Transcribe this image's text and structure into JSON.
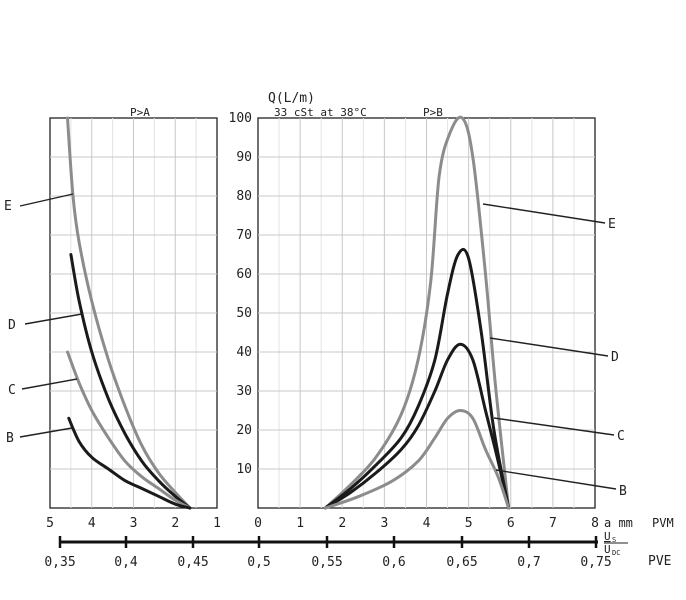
{
  "chart_data": {
    "type": "line",
    "y_label": "Q(L/m)",
    "condition": "33 cSt at 38°C",
    "ylim": [
      0,
      100
    ],
    "y_ticks": [
      10,
      20,
      30,
      40,
      50,
      60,
      70,
      80,
      90,
      100
    ],
    "grid": true,
    "panels": [
      {
        "id": "left",
        "title": "P>A",
        "x_ticks": [
          5,
          4,
          3,
          2,
          1
        ],
        "xlim": [
          5,
          1
        ],
        "series": [
          {
            "name": "E",
            "color": "#8c8c8c",
            "x": [
              4.58,
              4.45,
              4.3,
              4.0,
              3.6,
              3.2,
              2.8,
              2.4,
              2.0,
              1.65
            ],
            "y": [
              100,
              80,
              68,
              53,
              38,
              26,
              16,
              9,
              4,
              0
            ]
          },
          {
            "name": "D",
            "color": "#1a1a1a",
            "x": [
              4.5,
              4.3,
              4.0,
              3.6,
              3.2,
              2.8,
              2.4,
              2.0,
              1.65
            ],
            "y": [
              65,
              53,
              40,
              28,
              19,
              12,
              7,
              3,
              0
            ]
          },
          {
            "name": "C",
            "color": "#8c8c8c",
            "x": [
              4.58,
              4.3,
              4.0,
              3.6,
              3.2,
              2.8,
              2.4,
              2.0,
              1.65
            ],
            "y": [
              40,
              32,
              25,
              18,
              12,
              8,
              5,
              2,
              0
            ]
          },
          {
            "name": "B",
            "color": "#1a1a1a",
            "x": [
              4.55,
              4.3,
              4.0,
              3.6,
              3.2,
              2.8,
              2.4,
              2.0,
              1.65
            ],
            "y": [
              23,
              17,
              13,
              10,
              7,
              5,
              3,
              1,
              0
            ]
          }
        ]
      },
      {
        "id": "right",
        "title": "P>B",
        "x_ticks": [
          0,
          1,
          2,
          3,
          4,
          5,
          6,
          7,
          8
        ],
        "xlim": [
          0,
          8
        ],
        "x_label": "a mm",
        "series": [
          {
            "name": "E",
            "color": "#8c8c8c",
            "x": [
              1.6,
              2.2,
              2.8,
              3.4,
              3.8,
              4.1,
              4.3,
              4.55,
              4.85,
              5.1,
              5.4,
              5.65,
              5.95
            ],
            "y": [
              0,
              6,
              13,
              24,
              38,
              58,
              85,
              96,
              100,
              90,
              60,
              30,
              0
            ]
          },
          {
            "name": "D",
            "color": "#1a1a1a",
            "x": [
              1.6,
              2.2,
              2.8,
              3.4,
              3.8,
              4.2,
              4.5,
              4.75,
              5.0,
              5.3,
              5.6,
              5.95
            ],
            "y": [
              0,
              5,
              11,
              18,
              26,
              38,
              55,
              65,
              64,
              45,
              20,
              0
            ]
          },
          {
            "name": "C",
            "color": "#1a1a1a",
            "x": [
              1.6,
              2.2,
              2.8,
              3.4,
              3.8,
              4.2,
              4.5,
              4.8,
              5.1,
              5.4,
              5.7,
              5.95
            ],
            "y": [
              0,
              4,
              9,
              15,
              21,
              30,
              38,
              42,
              38,
              25,
              12,
              0
            ]
          },
          {
            "name": "B",
            "color": "#8c8c8c",
            "x": [
              1.6,
              2.4,
              3.2,
              3.8,
              4.2,
              4.5,
              4.8,
              5.1,
              5.4,
              5.7,
              5.95
            ],
            "y": [
              0,
              3,
              7,
              12,
              18,
              23,
              25,
              23,
              15,
              8,
              0
            ]
          }
        ]
      }
    ],
    "scales": [
      {
        "id": "pvm",
        "label": "PVM",
        "unit_label": "a mm"
      },
      {
        "id": "pve",
        "label": "PVE",
        "ratio_top": "U",
        "ratio_top_sub": "S",
        "ratio_bottom": "U",
        "ratio_bottom_sub": "DC",
        "tick_labels": [
          "0,35",
          "0,4",
          "0,45",
          "0,5",
          "0,55",
          "0,6",
          "0,65",
          "0,7",
          "0,75"
        ]
      }
    ]
  }
}
